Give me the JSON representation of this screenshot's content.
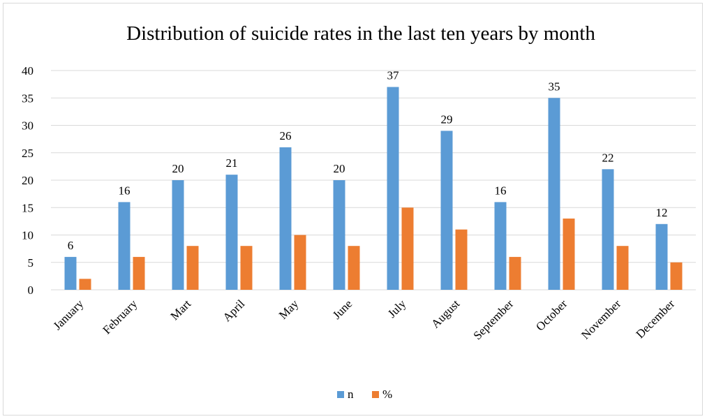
{
  "chart_data": {
    "type": "bar",
    "title": "Distribution of suicide rates in the last ten years by month",
    "categories": [
      "January",
      "February",
      "Mart",
      "April",
      "May",
      "June",
      "July",
      "August",
      "September",
      "October",
      "November",
      "December"
    ],
    "series": [
      {
        "name": "n",
        "values": [
          6,
          16,
          20,
          21,
          26,
          20,
          37,
          29,
          16,
          35,
          22,
          12
        ],
        "color": "#5b9bd5",
        "show_labels": true
      },
      {
        "name": "%",
        "values": [
          2,
          6,
          8,
          8,
          10,
          8,
          15,
          11,
          6,
          13,
          8,
          5
        ],
        "color": "#ed7d31",
        "show_labels": false
      }
    ],
    "ylim": [
      0,
      40
    ],
    "yticks": [
      0,
      5,
      10,
      15,
      20,
      25,
      30,
      35,
      40
    ],
    "grid": true,
    "legend_position": "bottom"
  }
}
